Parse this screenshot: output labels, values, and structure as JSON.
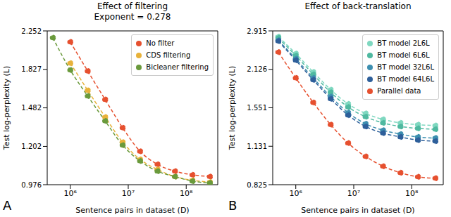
{
  "chart_data": [
    {
      "type": "line",
      "label": "A",
      "title": "Effect of filtering",
      "subtitle": "Exponent = 0.278",
      "x_label": "Sentence pairs in dataset (D)",
      "y_label": "Test log-perplexity (L)",
      "log": true,
      "grid": false,
      "legend": "upper right",
      "marker": "circle",
      "line_style": "dashed",
      "x": [
        500000,
        1000000,
        2000000,
        4000000,
        8000000,
        16000000,
        32000000,
        64000000,
        128000000,
        256000000
      ],
      "xlim": [
        400000,
        350000000
      ],
      "xticks": [
        {
          "value": 1000000,
          "label": "10⁶"
        },
        {
          "value": 10000000,
          "label": "10⁷"
        },
        {
          "value": 100000000,
          "label": "10⁸"
        }
      ],
      "ylim": [
        0.976,
        2.252
      ],
      "yticks": [
        0.976,
        1.202,
        1.482,
        1.827,
        2.252
      ],
      "series": [
        {
          "name": "No filter",
          "color": "#e6502f",
          "values": [
            null,
            2.12,
            1.81,
            1.55,
            1.33,
            1.17,
            1.09,
            1.05,
            1.03,
            1.02
          ]
        },
        {
          "name": "CDS filtering",
          "color": "#e8b23a",
          "values": [
            null,
            1.89,
            1.63,
            1.41,
            1.23,
            1.12,
            1.06,
            1.02,
            1.0,
            0.99
          ]
        },
        {
          "name": "Bicleaner filtering",
          "color": "#6a9a3c",
          "values": [
            2.17,
            1.82,
            1.58,
            1.38,
            1.21,
            1.11,
            1.05,
            1.02,
            0.995,
            0.985
          ]
        }
      ]
    },
    {
      "type": "line",
      "label": "B",
      "title": "Effect of back-translation",
      "x_label": "Sentence pairs in dataset (D)",
      "y_label": "Test log-perplexity (L)",
      "log": true,
      "grid": false,
      "legend": "upper right",
      "marker": "circle",
      "line_style": "dashed",
      "x": [
        500000,
        1000000,
        2000000,
        4000000,
        8000000,
        16000000,
        32000000,
        64000000,
        128000000,
        256000000
      ],
      "xlim": [
        400000,
        350000000
      ],
      "xticks": [
        {
          "value": 1000000,
          "label": "10⁶"
        },
        {
          "value": 10000000,
          "label": "10⁷"
        },
        {
          "value": 100000000,
          "label": "10⁸"
        }
      ],
      "ylim": [
        0.825,
        2.915
      ],
      "yticks": [
        0.825,
        1.131,
        1.551,
        2.126,
        2.915
      ],
      "series": [
        {
          "name": "BT model 2L6L",
          "color": "#7fd8c0",
          "values": [
            2.78,
            2.42,
            2.08,
            1.8,
            1.6,
            1.48,
            1.41,
            1.37,
            1.35,
            1.34
          ]
        },
        {
          "name": "BT model 6L6L",
          "color": "#4fb9a0",
          "values": [
            2.75,
            2.38,
            2.04,
            1.76,
            1.56,
            1.44,
            1.37,
            1.33,
            1.31,
            1.3
          ]
        },
        {
          "name": "BT model 32L6L",
          "color": "#3d8fb0",
          "values": [
            2.7,
            2.32,
            1.98,
            1.7,
            1.49,
            1.36,
            1.29,
            1.25,
            1.22,
            1.21
          ]
        },
        {
          "name": "BT model 64L6L",
          "color": "#2e5f9a",
          "values": [
            2.68,
            2.29,
            1.95,
            1.67,
            1.46,
            1.33,
            1.26,
            1.22,
            1.19,
            1.18
          ]
        },
        {
          "name": "Parallel data",
          "color": "#e6502f",
          "values": [
            2.45,
            1.98,
            1.62,
            1.35,
            1.16,
            1.04,
            0.96,
            0.91,
            0.88,
            0.87
          ]
        }
      ]
    }
  ]
}
